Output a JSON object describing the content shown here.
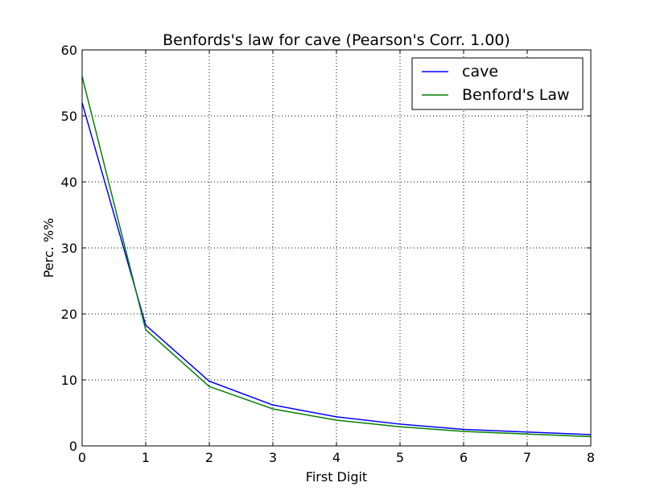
{
  "chart_data": {
    "type": "line",
    "title": "Benfords's law for cave (Pearson's Corr. 1.00)",
    "xlabel": "First Digit",
    "ylabel": "Perc. %%",
    "xlim": [
      0,
      8
    ],
    "ylim": [
      0,
      60
    ],
    "x_ticks": [
      "0",
      "1",
      "2",
      "3",
      "4",
      "5",
      "6",
      "7",
      "8"
    ],
    "y_ticks": [
      "0",
      "10",
      "20",
      "30",
      "40",
      "50",
      "60"
    ],
    "grid": true,
    "legend_position": "top-right",
    "x": [
      0,
      1,
      2,
      3,
      4,
      5,
      6,
      7,
      8
    ],
    "series": [
      {
        "name": "cave",
        "color": "#0000ff",
        "values": [
          52.0,
          18.3,
          9.8,
          6.2,
          4.4,
          3.3,
          2.5,
          2.1,
          1.7
        ]
      },
      {
        "name": "Benford's Law",
        "color": "#008000",
        "values": [
          56.0,
          17.6,
          9.0,
          5.6,
          3.9,
          2.9,
          2.2,
          1.8,
          1.4
        ]
      }
    ]
  }
}
